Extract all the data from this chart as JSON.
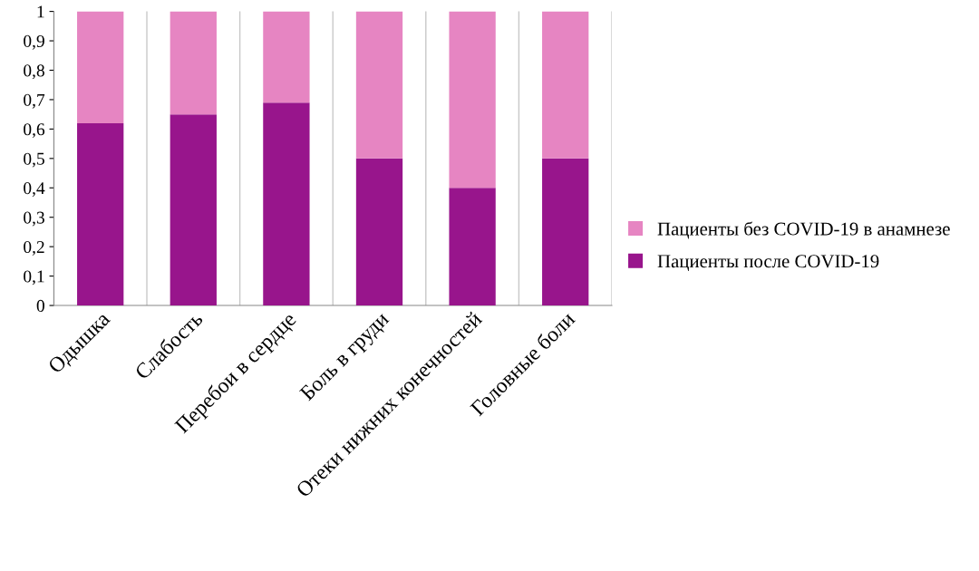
{
  "chart_data": {
    "type": "bar",
    "stacked": true,
    "categories": [
      "Одышка",
      "Слабость",
      "Перебои в сердце",
      "Боль в груди",
      "Отеки нижних конечностей",
      "Головные боли"
    ],
    "series": [
      {
        "name": "Пациенты после COVID-19",
        "color": "#98158c",
        "values": [
          0.62,
          0.65,
          0.69,
          0.5,
          0.4,
          0.5
        ]
      },
      {
        "name": "Пациенты без COVID-19 в анамнезе",
        "color": "#e685c2",
        "values": [
          0.38,
          0.35,
          0.31,
          0.5,
          0.6,
          0.5
        ]
      }
    ],
    "ylim": [
      0,
      1
    ],
    "yticks": [
      0,
      {
        "value": 0.1,
        "label": "0,1"
      },
      {
        "value": 0.2,
        "label": "0,2"
      },
      {
        "value": 0.3,
        "label": "0,3"
      },
      {
        "value": 0.4,
        "label": "0,4"
      },
      {
        "value": 0.5,
        "label": "0,5"
      },
      {
        "value": 0.6,
        "label": "0,6"
      },
      {
        "value": 0.7,
        "label": "0,7"
      },
      {
        "value": 0.8,
        "label": "0,8"
      },
      {
        "value": 0.9,
        "label": "0,9"
      },
      1
    ],
    "grid": "x",
    "legend": "right"
  }
}
